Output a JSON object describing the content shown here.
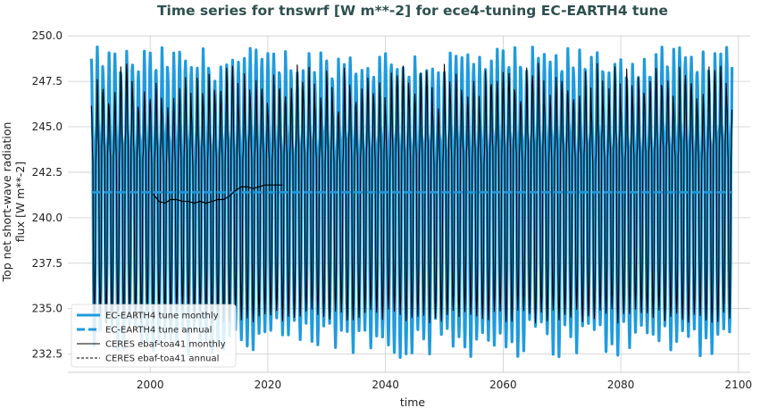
{
  "chart_data": {
    "type": "line",
    "title": "Time series for tnswrf [W m**-2] for ece4-tuning EC-EARTH4 tune",
    "xlabel": "time",
    "ylabel_lines": [
      "Top net short-wave radiation",
      "flux [W m**-2]"
    ],
    "xlim": [
      1986,
      2102
    ],
    "ylim": [
      231.5,
      250.5
    ],
    "xticks": [
      2000,
      2020,
      2040,
      2060,
      2080,
      2100
    ],
    "yticks": [
      "232.5",
      "235.0",
      "237.5",
      "240.0",
      "242.5",
      "245.0",
      "247.5",
      "250.0"
    ],
    "grid": true,
    "legend_position": "lower-left",
    "series": [
      {
        "name": "EC-EARTH4 tune monthly",
        "color": "#1f9bde",
        "style": "solid-thick",
        "x_range": [
          1990,
          2099
        ],
        "mean": 241.3,
        "annual_max_range": [
          247.5,
          249.4
        ],
        "annual_min_range": [
          232.3,
          234.5
        ]
      },
      {
        "name": "EC-EARTH4 tune annual",
        "color": "#1f9bde",
        "style": "dashed-thick",
        "x_range": [
          1990,
          2099
        ],
        "value": 241.4
      },
      {
        "name": "CERES ebaf-toa41 monthly",
        "color": "#000000",
        "style": "solid-thin",
        "x_range": [
          1990,
          2099
        ],
        "mean": 241.3,
        "annual_max_range": [
          245.8,
          248.5
        ],
        "annual_min_range": [
          234.2,
          235.0
        ]
      },
      {
        "name": "CERES ebaf-toa41 annual",
        "color": "#000000",
        "style": "dashed-thin",
        "x": [
          2000.5,
          2001.5,
          2002.5,
          2003.5,
          2004.5,
          2005.5,
          2006.5,
          2007.5,
          2008.5,
          2009.5,
          2010.5,
          2011.5,
          2012.5,
          2013.5,
          2014.5,
          2015.5,
          2016.5,
          2017.5,
          2018.5,
          2019.5,
          2020.5,
          2021.5,
          2022.5
        ],
        "values": [
          241.3,
          240.9,
          240.8,
          241.0,
          241.0,
          240.9,
          240.9,
          240.8,
          240.9,
          240.8,
          240.9,
          241.0,
          241.0,
          241.2,
          241.5,
          241.7,
          241.7,
          241.6,
          241.7,
          241.8,
          241.8,
          241.8,
          241.8
        ]
      }
    ]
  }
}
